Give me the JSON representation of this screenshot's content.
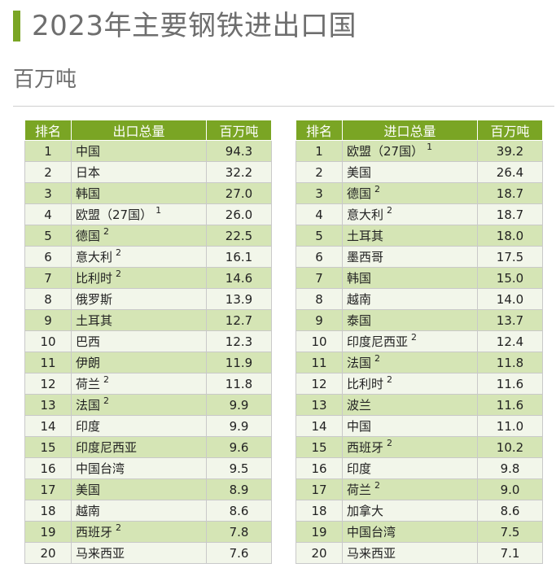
{
  "title": "2023年主要钢铁进出口国",
  "unit": "百万吨",
  "export_table": {
    "headers": [
      "排名",
      "出口总量",
      "百万吨"
    ],
    "rows": [
      {
        "rank": "1",
        "country": "中国",
        "note": "",
        "value": "94.3"
      },
      {
        "rank": "2",
        "country": "日本",
        "note": "",
        "value": "32.2"
      },
      {
        "rank": "3",
        "country": "韩国",
        "note": "",
        "value": "27.0"
      },
      {
        "rank": "4",
        "country": "欧盟（27国）",
        "note": "1",
        "value": "26.0"
      },
      {
        "rank": "5",
        "country": "德国",
        "note": "2",
        "value": "22.5"
      },
      {
        "rank": "6",
        "country": "意大利",
        "note": "2",
        "value": "16.1"
      },
      {
        "rank": "7",
        "country": "比利时",
        "note": "2",
        "value": "14.6"
      },
      {
        "rank": "8",
        "country": "俄罗斯",
        "note": "",
        "value": "13.9"
      },
      {
        "rank": "9",
        "country": "土耳其",
        "note": "",
        "value": "12.7"
      },
      {
        "rank": "10",
        "country": "巴西",
        "note": "",
        "value": "12.3"
      },
      {
        "rank": "11",
        "country": "伊朗",
        "note": "",
        "value": "11.9"
      },
      {
        "rank": "12",
        "country": "荷兰",
        "note": "2",
        "value": "11.8"
      },
      {
        "rank": "13",
        "country": "法国",
        "note": "2",
        "value": "9.9"
      },
      {
        "rank": "14",
        "country": "印度",
        "note": "",
        "value": "9.9"
      },
      {
        "rank": "15",
        "country": "印度尼西亚",
        "note": "",
        "value": "9.6"
      },
      {
        "rank": "16",
        "country": "中国台湾",
        "note": "",
        "value": "9.5"
      },
      {
        "rank": "17",
        "country": "美国",
        "note": "",
        "value": "8.9"
      },
      {
        "rank": "18",
        "country": "越南",
        "note": "",
        "value": "8.6"
      },
      {
        "rank": "19",
        "country": "西班牙",
        "note": "2",
        "value": "7.8"
      },
      {
        "rank": "20",
        "country": "马来西亚",
        "note": "",
        "value": "7.6"
      }
    ]
  },
  "import_table": {
    "headers": [
      "排名",
      "进口总量",
      "百万吨"
    ],
    "rows": [
      {
        "rank": "1",
        "country": "欧盟（27国）",
        "note": "1",
        "value": "39.2"
      },
      {
        "rank": "2",
        "country": "美国",
        "note": "",
        "value": "26.4"
      },
      {
        "rank": "3",
        "country": "德国",
        "note": "2",
        "value": "18.7"
      },
      {
        "rank": "4",
        "country": "意大利",
        "note": "2",
        "value": "18.7"
      },
      {
        "rank": "5",
        "country": "土耳其",
        "note": "",
        "value": "18.0"
      },
      {
        "rank": "6",
        "country": "墨西哥",
        "note": "",
        "value": "17.5"
      },
      {
        "rank": "7",
        "country": "韩国",
        "note": "",
        "value": "15.0"
      },
      {
        "rank": "8",
        "country": "越南",
        "note": "",
        "value": "14.0"
      },
      {
        "rank": "9",
        "country": "泰国",
        "note": "",
        "value": "13.7"
      },
      {
        "rank": "10",
        "country": "印度尼西亚",
        "note": "2",
        "value": "12.4"
      },
      {
        "rank": "11",
        "country": "法国",
        "note": "2",
        "value": "11.8"
      },
      {
        "rank": "12",
        "country": "比利时",
        "note": "2",
        "value": "11.6"
      },
      {
        "rank": "13",
        "country": "波兰",
        "note": "",
        "value": "11.6"
      },
      {
        "rank": "14",
        "country": "中国",
        "note": "",
        "value": "11.0"
      },
      {
        "rank": "15",
        "country": "西班牙",
        "note": "2",
        "value": "10.2"
      },
      {
        "rank": "16",
        "country": "印度",
        "note": "",
        "value": "9.8"
      },
      {
        "rank": "17",
        "country": "荷兰",
        "note": "2",
        "value": "9.0"
      },
      {
        "rank": "18",
        "country": "加拿大",
        "note": "",
        "value": "8.6"
      },
      {
        "rank": "19",
        "country": "中国台湾",
        "note": "",
        "value": "7.5"
      },
      {
        "rank": "20",
        "country": "马来西亚",
        "note": "",
        "value": "7.1"
      }
    ]
  },
  "colors": {
    "accent": "#7aa524",
    "row_odd": "#d5e5b5",
    "row_even": "#f2f6ea",
    "title_text": "#6e6e6e"
  }
}
